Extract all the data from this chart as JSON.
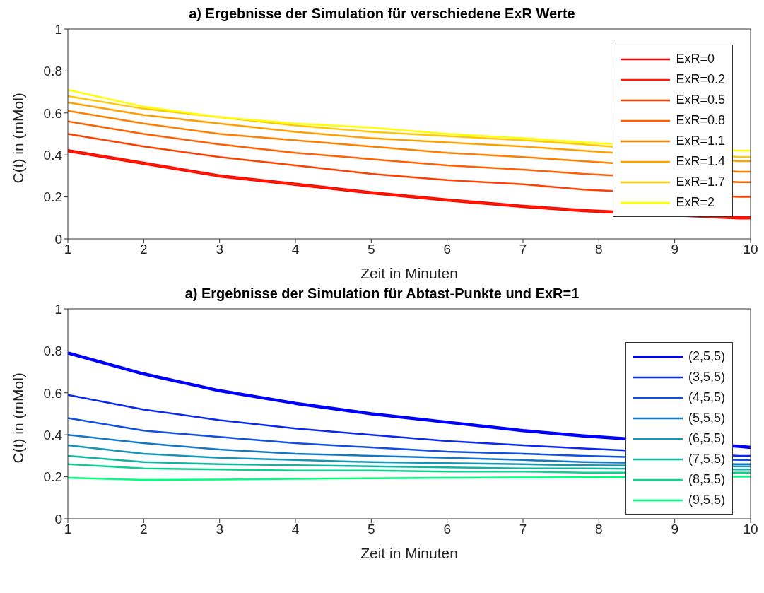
{
  "chart_data": [
    {
      "type": "line",
      "title": "a) Ergebnisse der Simulation für verschiedene ExR Werte",
      "xlabel": "Zeit in Minuten",
      "ylabel": "C(t) in (mMol)",
      "x": [
        1,
        2,
        3,
        4,
        5,
        6,
        7,
        7.8,
        9.85,
        10
      ],
      "xlim": [
        1,
        10
      ],
      "xticks": [
        1,
        2,
        3,
        4,
        5,
        6,
        7,
        8,
        9,
        10
      ],
      "ylim": [
        0,
        1
      ],
      "yticks": [
        0,
        0.2,
        0.4,
        0.6,
        0.8,
        1
      ],
      "legend": "top right",
      "marker": "none",
      "line_style": "solid",
      "series": [
        {
          "name": "ExR=0",
          "color": "#ff0000",
          "values": [
            0.42,
            0.36,
            0.3,
            0.26,
            0.22,
            0.185,
            0.155,
            0.135,
            0.1,
            0.1
          ]
        },
        {
          "name": "ExR=0.2",
          "color": "#ff1a00",
          "values": [
            0.42,
            0.36,
            0.3,
            0.26,
            0.22,
            0.185,
            0.155,
            0.135,
            0.1,
            0.1
          ]
        },
        {
          "name": "ExR=0.5",
          "color": "#ff4000",
          "values": [
            0.5,
            0.44,
            0.39,
            0.35,
            0.31,
            0.28,
            0.26,
            0.235,
            0.2,
            0.2
          ]
        },
        {
          "name": "ExR=0.8",
          "color": "#ff6000",
          "values": [
            0.56,
            0.5,
            0.45,
            0.41,
            0.38,
            0.35,
            0.33,
            0.31,
            0.27,
            0.27
          ]
        },
        {
          "name": "ExR=1.1",
          "color": "#ff8000",
          "values": [
            0.61,
            0.55,
            0.5,
            0.47,
            0.44,
            0.41,
            0.39,
            0.37,
            0.32,
            0.32
          ]
        },
        {
          "name": "ExR=1.4",
          "color": "#ffa000",
          "values": [
            0.65,
            0.59,
            0.55,
            0.51,
            0.48,
            0.46,
            0.44,
            0.42,
            0.37,
            0.37
          ]
        },
        {
          "name": "ExR=1.7",
          "color": "#ffc800",
          "values": [
            0.68,
            0.62,
            0.58,
            0.54,
            0.51,
            0.49,
            0.47,
            0.45,
            0.39,
            0.39
          ]
        },
        {
          "name": "ExR=2",
          "color": "#ffff00",
          "values": [
            0.71,
            0.63,
            0.58,
            0.55,
            0.53,
            0.5,
            0.48,
            0.46,
            0.42,
            0.42
          ]
        }
      ]
    },
    {
      "type": "line",
      "title": "a) Ergebnisse der Simulation für Abtast-Punkte und ExR=1",
      "xlabel": "Zeit in Minuten",
      "ylabel": "C(t) in (mMol)",
      "x": [
        1,
        2,
        3,
        4,
        5,
        6,
        7,
        7.8,
        9.85,
        10
      ],
      "xlim": [
        1,
        10
      ],
      "xticks": [
        1,
        2,
        3,
        4,
        5,
        6,
        7,
        8,
        9,
        10
      ],
      "ylim": [
        0,
        1
      ],
      "yticks": [
        0,
        0.2,
        0.4,
        0.6,
        0.8,
        1
      ],
      "legend": "right",
      "marker": "none",
      "line_style": "solid",
      "series": [
        {
          "name": "(2,5,5)",
          "color": "#0000ff",
          "values": [
            0.79,
            0.69,
            0.61,
            0.55,
            0.5,
            0.46,
            0.42,
            0.395,
            0.345,
            0.34
          ]
        },
        {
          "name": "(3,5,5)",
          "color": "#0a28f0",
          "values": [
            0.59,
            0.52,
            0.47,
            0.43,
            0.4,
            0.37,
            0.35,
            0.335,
            0.3,
            0.3
          ]
        },
        {
          "name": "(4,5,5)",
          "color": "#1050e0",
          "values": [
            0.48,
            0.42,
            0.39,
            0.36,
            0.34,
            0.32,
            0.31,
            0.3,
            0.28,
            0.28
          ]
        },
        {
          "name": "(5,5,5)",
          "color": "#1478c8",
          "values": [
            0.4,
            0.36,
            0.33,
            0.31,
            0.3,
            0.29,
            0.28,
            0.27,
            0.26,
            0.26
          ]
        },
        {
          "name": "(6,5,5)",
          "color": "#1496b4",
          "values": [
            0.35,
            0.31,
            0.29,
            0.28,
            0.27,
            0.265,
            0.26,
            0.255,
            0.25,
            0.25
          ]
        },
        {
          "name": "(7,5,5)",
          "color": "#10b4a0",
          "values": [
            0.3,
            0.27,
            0.26,
            0.255,
            0.25,
            0.245,
            0.24,
            0.24,
            0.235,
            0.235
          ]
        },
        {
          "name": "(8,5,5)",
          "color": "#0ad28c",
          "values": [
            0.26,
            0.24,
            0.235,
            0.23,
            0.23,
            0.225,
            0.225,
            0.22,
            0.22,
            0.22
          ]
        },
        {
          "name": "(9,5,5)",
          "color": "#00ff80",
          "values": [
            0.195,
            0.185,
            0.187,
            0.19,
            0.193,
            0.195,
            0.197,
            0.198,
            0.2,
            0.2
          ]
        }
      ]
    }
  ]
}
